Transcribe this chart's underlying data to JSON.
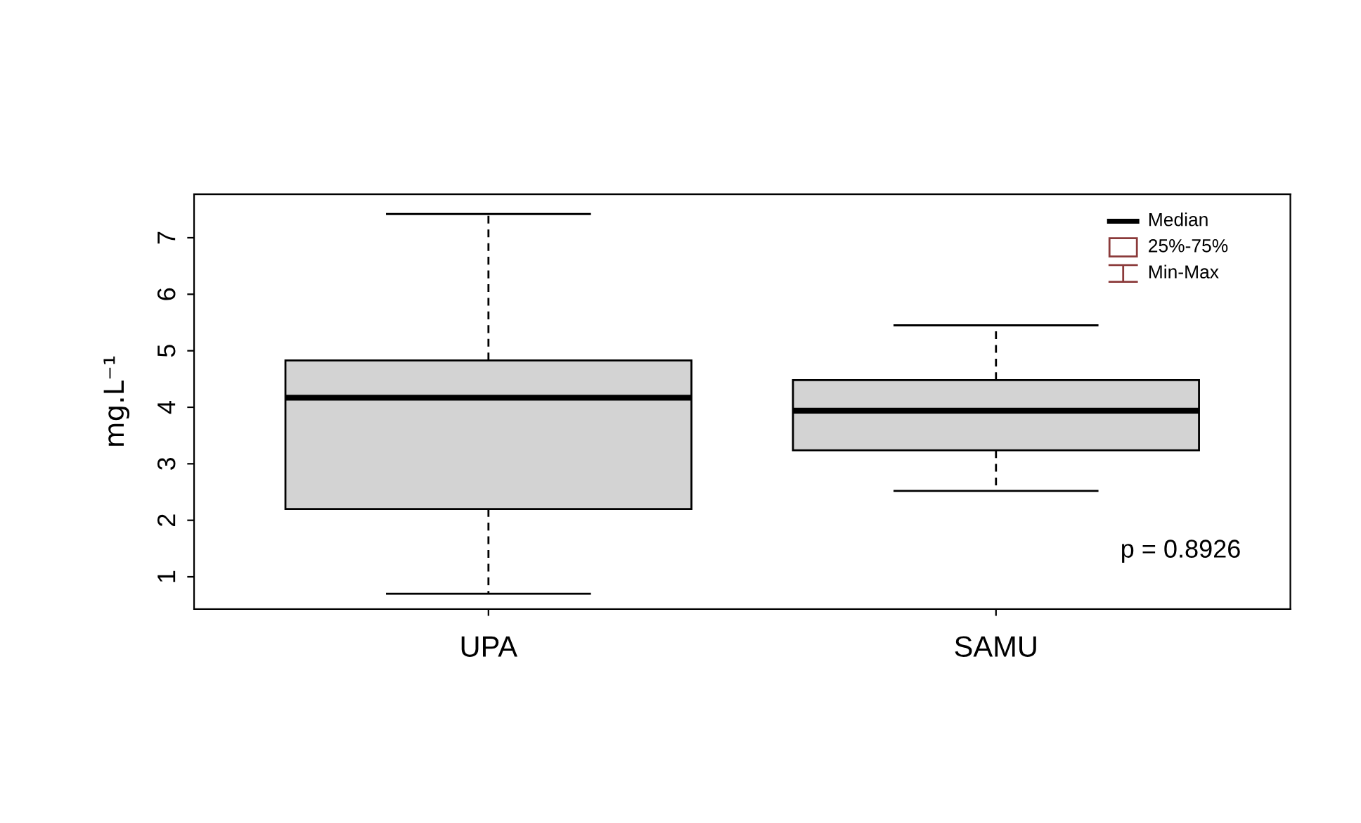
{
  "chart_data": {
    "type": "box",
    "ylabel": "mg.L⁻¹",
    "categories": [
      "UPA",
      "SAMU"
    ],
    "boxes": [
      {
        "low": 0.7,
        "q1": 2.2,
        "median": 4.17,
        "q3": 4.83,
        "high": 7.42
      },
      {
        "low": 2.52,
        "q1": 3.24,
        "median": 3.94,
        "q3": 4.48,
        "high": 5.45
      }
    ],
    "color": "#d3d3d3",
    "ylim": [
      0.43,
      7.77
    ],
    "yticks": [
      1,
      2,
      3,
      4,
      5,
      6,
      7
    ],
    "grid": false,
    "annotations": [
      "Median",
      "25%-75%",
      "Min-Max",
      "p = 0.8926"
    ]
  }
}
